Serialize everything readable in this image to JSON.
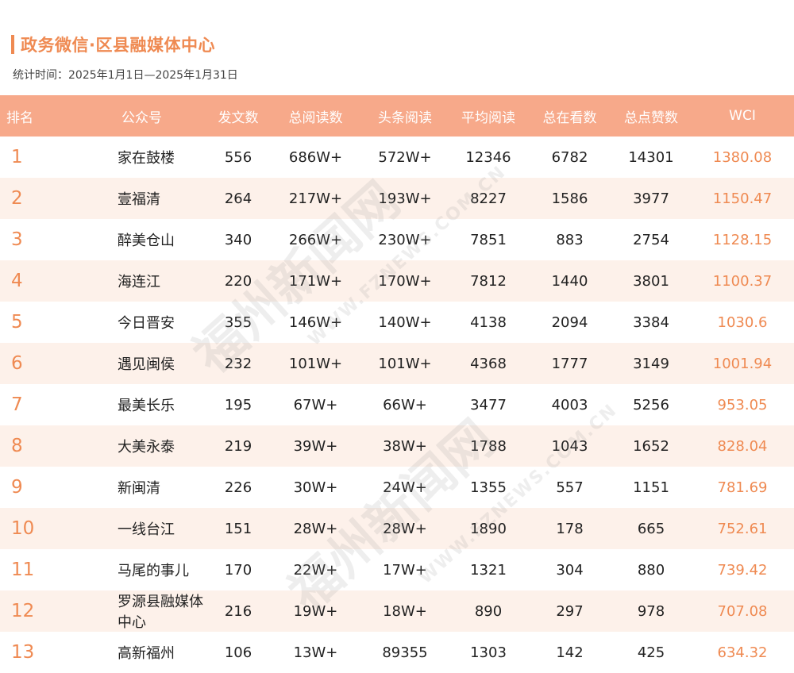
{
  "header": {
    "title": "政务微信·区县融媒体中心",
    "subtitle": "统计时间：2025年1月1日—2025年1月31日"
  },
  "table": {
    "columns": [
      "排名",
      "公众号",
      "发文数",
      "总阅读数",
      "头条阅读",
      "平均阅读",
      "总在看数",
      "总点赞数",
      "WCI"
    ],
    "rows": [
      {
        "rank": "1",
        "name": "家在鼓楼",
        "posts": "556",
        "total_reads": "686W+",
        "headline_reads": "572W+",
        "avg_reads": "12346",
        "looking": "6782",
        "likes": "14301",
        "wci": "1380.08"
      },
      {
        "rank": "2",
        "name": "壹福清",
        "posts": "264",
        "total_reads": "217W+",
        "headline_reads": "193W+",
        "avg_reads": "8227",
        "looking": "1586",
        "likes": "3977",
        "wci": "1150.47"
      },
      {
        "rank": "3",
        "name": "醉美仓山",
        "posts": "340",
        "total_reads": "266W+",
        "headline_reads": "230W+",
        "avg_reads": "7851",
        "looking": "883",
        "likes": "2754",
        "wci": "1128.15"
      },
      {
        "rank": "4",
        "name": "海连江",
        "posts": "220",
        "total_reads": "171W+",
        "headline_reads": "170W+",
        "avg_reads": "7812",
        "looking": "1440",
        "likes": "3801",
        "wci": "1100.37"
      },
      {
        "rank": "5",
        "name": "今日晋安",
        "posts": "355",
        "total_reads": "146W+",
        "headline_reads": "140W+",
        "avg_reads": "4138",
        "looking": "2094",
        "likes": "3384",
        "wci": "1030.6"
      },
      {
        "rank": "6",
        "name": "遇见闽侯",
        "posts": "232",
        "total_reads": "101W+",
        "headline_reads": "101W+",
        "avg_reads": "4368",
        "looking": "1777",
        "likes": "3149",
        "wci": "1001.94"
      },
      {
        "rank": "7",
        "name": "最美长乐",
        "posts": "195",
        "total_reads": "67W+",
        "headline_reads": "66W+",
        "avg_reads": "3477",
        "looking": "4003",
        "likes": "5256",
        "wci": "953.05"
      },
      {
        "rank": "8",
        "name": "大美永泰",
        "posts": "219",
        "total_reads": "39W+",
        "headline_reads": "38W+",
        "avg_reads": "1788",
        "looking": "1043",
        "likes": "1652",
        "wci": "828.04"
      },
      {
        "rank": "9",
        "name": "新闽清",
        "posts": "226",
        "total_reads": "30W+",
        "headline_reads": "24W+",
        "avg_reads": "1355",
        "looking": "557",
        "likes": "1151",
        "wci": "781.69"
      },
      {
        "rank": "10",
        "name": "一线台江",
        "posts": "151",
        "total_reads": "28W+",
        "headline_reads": "28W+",
        "avg_reads": "1890",
        "looking": "178",
        "likes": "665",
        "wci": "752.61"
      },
      {
        "rank": "11",
        "name": "马尾的事儿",
        "posts": "170",
        "total_reads": "22W+",
        "headline_reads": "17W+",
        "avg_reads": "1321",
        "looking": "304",
        "likes": "880",
        "wci": "739.42"
      },
      {
        "rank": "12",
        "name": "罗源县融媒体中心",
        "posts": "216",
        "total_reads": "19W+",
        "headline_reads": "18W+",
        "avg_reads": "890",
        "looking": "297",
        "likes": "978",
        "wci": "707.08"
      },
      {
        "rank": "13",
        "name": "高新福州",
        "posts": "106",
        "total_reads": "13W+",
        "headline_reads": "89355",
        "avg_reads": "1303",
        "looking": "142",
        "likes": "425",
        "wci": "634.32"
      }
    ]
  },
  "watermark": {
    "brand": "福州新闻网",
    "site": "WWW.FZNEWS.COM.CN"
  },
  "colors": {
    "accent": "#ef8a52",
    "header_bg": "#f7a98a",
    "stripe_bg": "#fdf1ea"
  }
}
